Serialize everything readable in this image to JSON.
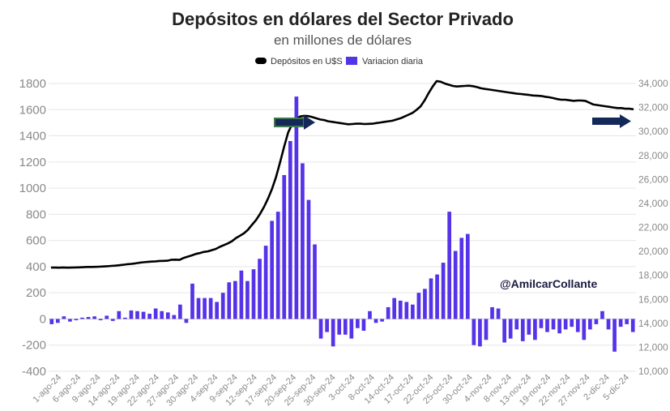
{
  "chart_data": {
    "type": "bar+line",
    "title": "Depósitos en dólares del Sector Privado",
    "subtitle": "en millones de dólares",
    "watermark": "@AmilcarCollante",
    "legend": {
      "placement": "top-center",
      "items": [
        {
          "name": "Depósitos en U$S",
          "shape": "line"
        },
        {
          "name": "Variacion diaria",
          "shape": "bar"
        }
      ]
    },
    "colors": {
      "bar": "#5533e8",
      "line": "#000000",
      "arrow": "#14285a",
      "grid": "#e6e6e6",
      "tick": "#8a8a8a"
    },
    "grid": true,
    "left_axis": {
      "ylim": [
        -400,
        1800
      ],
      "ticks": [
        1800,
        1600,
        1400,
        1200,
        1000,
        800,
        600,
        400,
        200,
        0,
        -200,
        -400
      ]
    },
    "right_axis": {
      "ylim": [
        10000,
        34000
      ],
      "ticks": [
        "34,000",
        "32,000",
        "30,000",
        "28,000",
        "26,000",
        "24,000",
        "22,000",
        "20,000",
        "18,000",
        "16,000",
        "14,000",
        "12,000",
        "10,000"
      ]
    },
    "x_tick_labels": [
      "1-ago-24",
      "6-ago-24",
      "9-ago-24",
      "14-ago-24",
      "19-ago-24",
      "22-ago-24",
      "27-ago-24",
      "30-ago-24",
      "4-sep-24",
      "9-sep-24",
      "12-sep-24",
      "17-sep-24",
      "20-sep-24",
      "25-sep-24",
      "30-sep-24",
      "3-oct-24",
      "8-oct-24",
      "14-oct-24",
      "17-oct-24",
      "22-oct-24",
      "25-oct-24",
      "30-oct-24",
      "4-nov-24",
      "8-nov-24",
      "13-nov-24",
      "19-nov-24",
      "22-nov-24",
      "27-nov-24",
      "2-dic-24",
      "5-dic-24"
    ],
    "series": [
      {
        "name": "Variacion diaria",
        "axis": "left",
        "type": "bar",
        "values": [
          -40,
          -30,
          20,
          -20,
          -10,
          10,
          15,
          20,
          -10,
          25,
          -15,
          60,
          10,
          65,
          60,
          55,
          40,
          80,
          60,
          50,
          30,
          110,
          -30,
          270,
          160,
          160,
          160,
          130,
          200,
          280,
          290,
          370,
          290,
          380,
          460,
          560,
          750,
          820,
          1100,
          1360,
          1700,
          1190,
          910,
          570,
          -150,
          -100,
          -210,
          -120,
          -120,
          -150,
          -70,
          -90,
          60,
          -30,
          -20,
          90,
          160,
          140,
          130,
          110,
          200,
          230,
          310,
          340,
          430,
          820,
          520,
          620,
          650,
          -200,
          -210,
          -160,
          90,
          80,
          -180,
          -150,
          -80,
          -170,
          -120,
          -160,
          -70,
          -100,
          -80,
          -110,
          -80,
          -60,
          -100,
          -160,
          -80,
          -40,
          60,
          -80,
          -250,
          -60,
          -40,
          -100
        ]
      },
      {
        "name": "Depósitos en U$S",
        "axis": "right",
        "type": "line",
        "values": [
          18650,
          18650,
          18640,
          18660,
          18640,
          18650,
          18660,
          18670,
          18680,
          18700,
          18700,
          18710,
          18720,
          18740,
          18760,
          18790,
          18810,
          18840,
          18880,
          18930,
          18960,
          19000,
          19050,
          19090,
          19120,
          19150,
          19170,
          19200,
          19210,
          19220,
          19300,
          19310,
          19290,
          19450,
          19560,
          19660,
          19780,
          19860,
          19950,
          20000,
          20100,
          20200,
          20380,
          20520,
          20660,
          20840,
          21100,
          21300,
          21500,
          21800,
          22200,
          22600,
          23100,
          23700,
          24400,
          25200,
          26200,
          27400,
          28700,
          29900,
          30600,
          31000,
          31250,
          31300,
          31280,
          31200,
          31100,
          31000,
          30950,
          30850,
          30800,
          30750,
          30700,
          30650,
          30600,
          30620,
          30650,
          30650,
          30620,
          30630,
          30650,
          30700,
          30750,
          30800,
          30850,
          30900,
          31000,
          31100,
          31250,
          31400,
          31550,
          31800,
          32100,
          32600,
          33200,
          33750,
          34200,
          34150,
          34000,
          33900,
          33800,
          33750,
          33780,
          33800,
          33820,
          33780,
          33700,
          33600,
          33550,
          33500,
          33450,
          33400,
          33350,
          33300,
          33250,
          33200,
          33150,
          33120,
          33080,
          33050,
          33000,
          32980,
          32960,
          32900,
          32850,
          32780,
          32700,
          32650,
          32650,
          32600,
          32550,
          32580,
          32580,
          32550,
          32400,
          32250,
          32200,
          32150,
          32100,
          32050,
          32000,
          31950,
          31950,
          31900,
          31900,
          31850
        ]
      }
    ]
  }
}
